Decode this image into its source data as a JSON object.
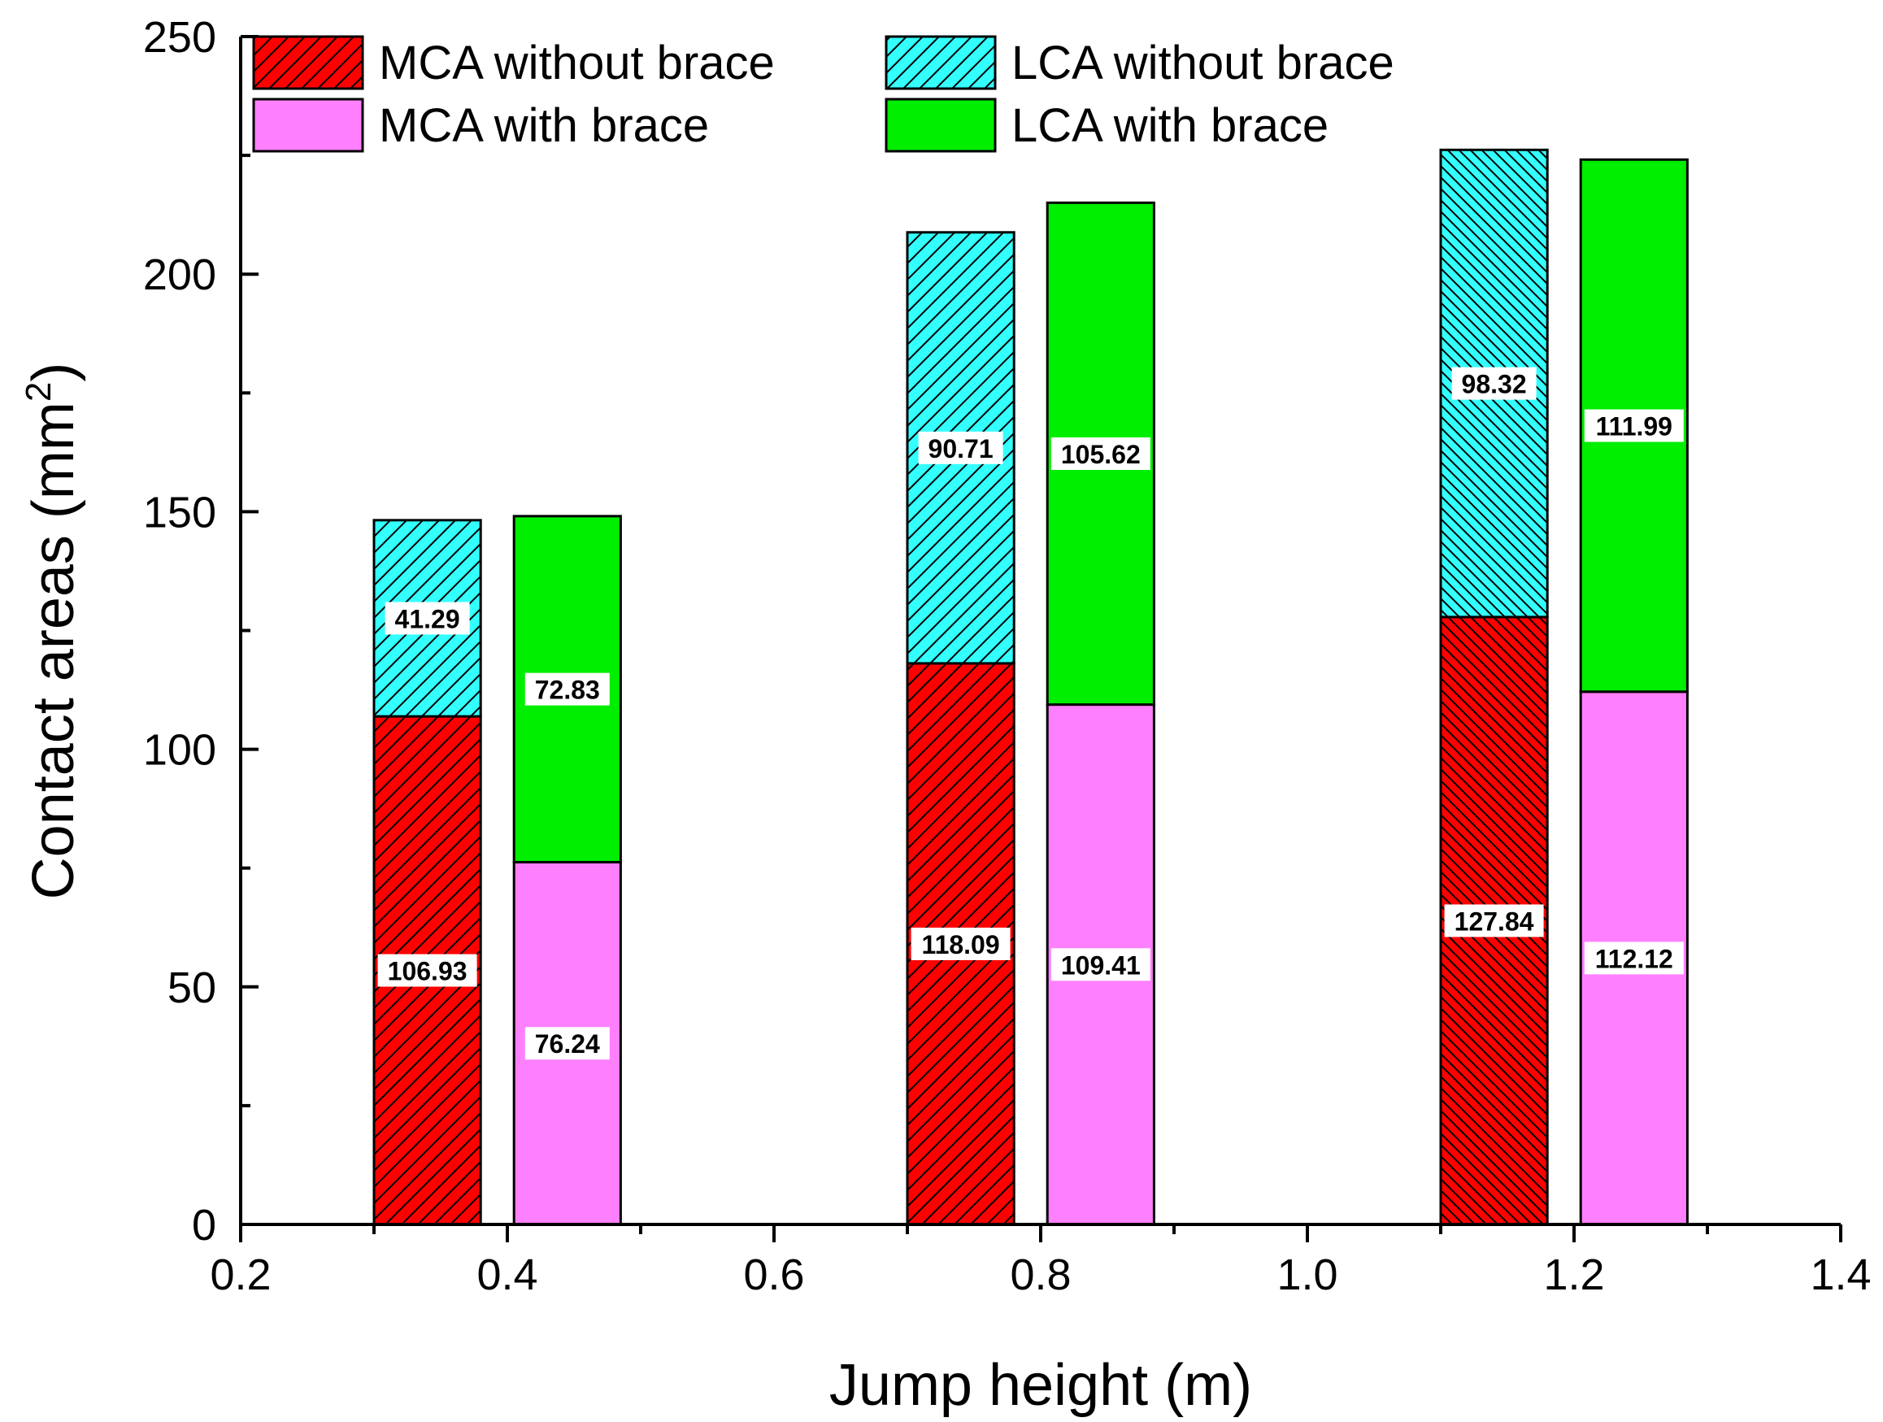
{
  "chart_data": {
    "type": "bar",
    "stacked": true,
    "title": "",
    "xlabel": "Jump height (m)",
    "ylabel_main": "Contact areas (mm",
    "ylabel_sup": "2",
    "ylabel_close": ")",
    "xlim": [
      0.2,
      1.4
    ],
    "ylim": [
      0,
      250
    ],
    "x_ticks": [
      "0.2",
      "0.4",
      "0.6",
      "0.8",
      "1.0",
      "1.2",
      "1.4"
    ],
    "y_ticks": [
      "0",
      "50",
      "100",
      "150",
      "200",
      "250"
    ],
    "x_groups": [
      0.4,
      0.8,
      1.2
    ],
    "stacks": [
      {
        "name": "without brace",
        "x_start_offset": -0.1,
        "x_end_offset": -0.02,
        "segments": [
          {
            "name": "MCA without brace",
            "color": "#ff0000",
            "hatch": "diag",
            "values": [
              106.93,
              118.09,
              127.84
            ],
            "labels": [
              "106.93",
              "118.09",
              "127.84"
            ]
          },
          {
            "name": "LCA without brace",
            "color": "#33ffff",
            "hatch": "diag",
            "values": [
              41.29,
              90.71,
              98.32
            ],
            "labels": [
              "41.29",
              "90.71",
              "98.32"
            ]
          }
        ]
      },
      {
        "name": "with brace",
        "x_start_offset": 0.005,
        "x_end_offset": 0.085,
        "segments": [
          {
            "name": "MCA with brace",
            "color": "#ff80ff",
            "hatch": "none",
            "values": [
              76.24,
              109.41,
              112.12
            ],
            "labels": [
              "76.24",
              "109.41",
              "112.12"
            ]
          },
          {
            "name": "LCA with brace",
            "color": "#00ee00",
            "hatch": "none",
            "values": [
              72.83,
              105.62,
              111.99
            ],
            "labels": [
              "72.83",
              "105.62",
              "111.99"
            ]
          }
        ]
      }
    ],
    "legend": {
      "placement": "top",
      "entries": [
        {
          "label": "MCA without brace",
          "color": "#ff0000",
          "hatch": "diag"
        },
        {
          "label": "LCA without brace",
          "color": "#33ffff",
          "hatch": "diag"
        },
        {
          "label": "MCA with brace",
          "color": "#ff80ff",
          "hatch": "none"
        },
        {
          "label": "LCA with brace",
          "color": "#00ee00",
          "hatch": "none"
        }
      ]
    }
  }
}
